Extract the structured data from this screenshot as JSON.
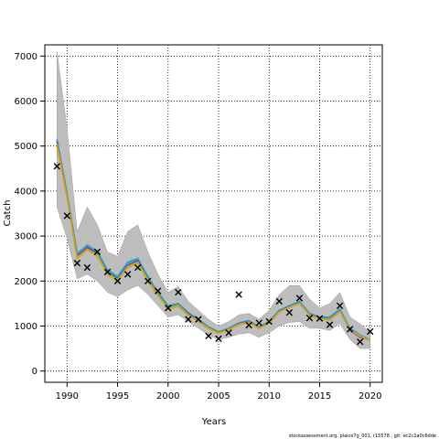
{
  "chart_data": {
    "type": "line",
    "xlabel": "Years",
    "ylabel": "Catch",
    "xlim": [
      1987.8,
      2021.2
    ],
    "ylim": [
      -250,
      7250
    ],
    "x_ticks": [
      1990,
      1995,
      2000,
      2005,
      2010,
      2015,
      2020
    ],
    "y_ticks": [
      0,
      1000,
      2000,
      3000,
      4000,
      5000,
      6000,
      7000
    ],
    "grid": "dotted",
    "years": [
      1989,
      1990,
      1991,
      1992,
      1993,
      1994,
      1995,
      1996,
      1997,
      1998,
      1999,
      2000,
      2001,
      2002,
      2003,
      2004,
      2005,
      2006,
      2007,
      2008,
      2009,
      2010,
      2011,
      2012,
      2013,
      2014,
      2015,
      2016,
      2017,
      2018,
      2019,
      2020
    ],
    "band": {
      "lower": [
        3650,
        2950,
        2050,
        2150,
        2000,
        1750,
        1650,
        1800,
        1900,
        1700,
        1450,
        1200,
        1250,
        1100,
        950,
        800,
        700,
        750,
        820,
        850,
        750,
        850,
        1000,
        1080,
        1100,
        950,
        950,
        900,
        1050,
        700,
        500,
        500
      ],
      "upper": [
        7100,
        5400,
        3100,
        3650,
        3250,
        2650,
        2550,
        3100,
        3250,
        2650,
        2150,
        1750,
        1880,
        1550,
        1350,
        1150,
        1000,
        1100,
        1250,
        1280,
        1150,
        1350,
        1700,
        1900,
        1900,
        1600,
        1400,
        1500,
        1750,
        1200,
        1050,
        850
      ]
    },
    "series": [
      {
        "color": "#1E90FF",
        "values": [
          5150,
          3950,
          2600,
          2800,
          2650,
          2250,
          2100,
          2420,
          2500,
          2100,
          1750,
          1450,
          1500,
          1300,
          1150,
          980,
          870,
          950,
          1070,
          1120,
          980,
          1100,
          1350,
          1450,
          1550,
          1280,
          1200,
          1200,
          1380,
          950,
          800,
          700
        ]
      },
      {
        "color": "#20B2AA",
        "values": [
          5120,
          3930,
          2620,
          2790,
          2630,
          2230,
          2080,
          2400,
          2480,
          2080,
          1740,
          1440,
          1490,
          1290,
          1140,
          970,
          865,
          945,
          1060,
          1110,
          975,
          1095,
          1340,
          1440,
          1540,
          1270,
          1190,
          1190,
          1370,
          930,
          780,
          690
        ]
      },
      {
        "color": "#7B2FBE",
        "values": [
          5100,
          3900,
          2550,
          2750,
          2600,
          2200,
          2050,
          2350,
          2450,
          2050,
          1700,
          1420,
          1470,
          1270,
          1130,
          960,
          860,
          935,
          1050,
          1100,
          965,
          1085,
          1330,
          1430,
          1520,
          1260,
          1170,
          1160,
          1340,
          900,
          750,
          690
        ]
      },
      {
        "color": "#9ACD32",
        "values": [
          5050,
          3880,
          2520,
          2710,
          2580,
          2170,
          2030,
          2320,
          2420,
          2030,
          1690,
          1400,
          1460,
          1250,
          1110,
          950,
          850,
          925,
          1040,
          1090,
          955,
          1075,
          1320,
          1420,
          1510,
          1250,
          1160,
          1150,
          1330,
          910,
          770,
          690
        ]
      },
      {
        "color": "#D4A017",
        "values": [
          5000,
          3850,
          2500,
          2700,
          2550,
          2150,
          2000,
          2300,
          2400,
          2000,
          1680,
          1380,
          1440,
          1240,
          1100,
          940,
          840,
          915,
          1030,
          1080,
          945,
          1065,
          1310,
          1410,
          1500,
          1240,
          1150,
          1140,
          1320,
          920,
          780,
          690
        ]
      }
    ],
    "observed": {
      "marker": "x",
      "color": "#000000",
      "x": [
        1989,
        1990,
        1991,
        1992,
        1993,
        1994,
        1995,
        1996,
        1997,
        1998,
        1999,
        2000,
        2001,
        2002,
        2003,
        2004,
        2005,
        2006,
        2007,
        2008,
        2009,
        2010,
        2011,
        2012,
        2013,
        2014,
        2015,
        2016,
        2017,
        2018,
        2019,
        2020
      ],
      "y": [
        4550,
        3450,
        2400,
        2300,
        2650,
        2200,
        2000,
        2150,
        2300,
        2000,
        1780,
        1400,
        1750,
        1150,
        1150,
        780,
        720,
        850,
        1700,
        1020,
        1070,
        1100,
        1550,
        1300,
        1620,
        1180,
        1170,
        1030,
        1450,
        930,
        650,
        880
      ]
    }
  },
  "footer": "stockassessment.org, plaice7g_001, r15578 , git: ec2c2a0c6dde"
}
